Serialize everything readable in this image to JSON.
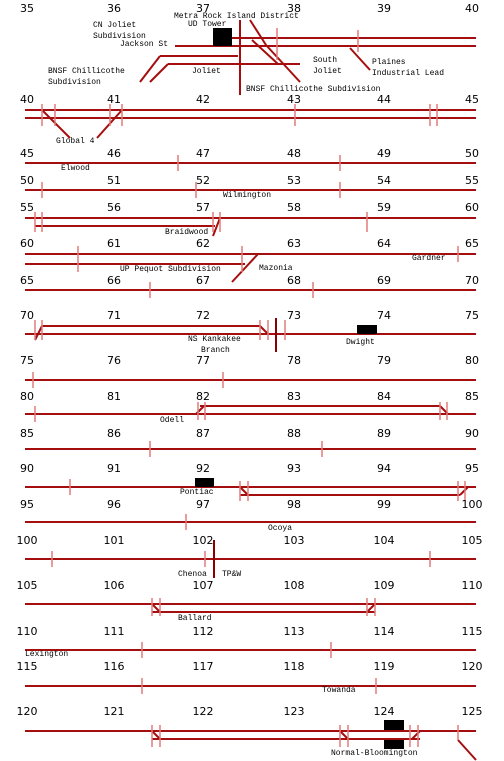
{
  "rows": [
    {
      "miles": [
        35,
        36,
        37,
        38,
        39,
        40
      ],
      "labels": [
        "Metra Rock Island District",
        "UD Tower",
        "CN Joliet",
        "Subdivision",
        "Jackson St",
        "South",
        "Joliet",
        "Plaines",
        "Industrial Lead",
        "BNSF Chillicothe",
        "Subdivision",
        "Joliet",
        "BNSF Chillicothe Subdivision"
      ]
    },
    {
      "miles": [
        40,
        41,
        42,
        43,
        44,
        45
      ],
      "labels": [
        "Global 4"
      ]
    },
    {
      "miles": [
        45,
        46,
        47,
        48,
        49,
        50
      ],
      "labels": [
        "Elwood"
      ]
    },
    {
      "miles": [
        50,
        51,
        52,
        53,
        54,
        55
      ],
      "labels": [
        "Wilmington"
      ]
    },
    {
      "miles": [
        55,
        56,
        57,
        58,
        59,
        60
      ],
      "labels": [
        "Braidwood"
      ]
    },
    {
      "miles": [
        60,
        61,
        62,
        63,
        64,
        65
      ],
      "labels": [
        "Gardner",
        "UP Pequot Subdivision",
        "Mazonia"
      ]
    },
    {
      "miles": [
        65,
        66,
        67,
        68,
        69,
        70
      ],
      "labels": []
    },
    {
      "miles": [
        70,
        71,
        72,
        73,
        74,
        75
      ],
      "labels": [
        "NS Kankakee",
        "Branch",
        "Dwight"
      ]
    },
    {
      "miles": [
        75,
        76,
        77,
        78,
        79,
        80
      ],
      "labels": []
    },
    {
      "miles": [
        80,
        81,
        82,
        83,
        84,
        85
      ],
      "labels": [
        "Odell"
      ]
    },
    {
      "miles": [
        85,
        86,
        87,
        88,
        89,
        90
      ],
      "labels": []
    },
    {
      "miles": [
        90,
        91,
        92,
        93,
        94,
        95
      ],
      "labels": [
        "Pontiac"
      ]
    },
    {
      "miles": [
        95,
        96,
        97,
        98,
        99,
        100
      ],
      "labels": [
        "Ocoya"
      ]
    },
    {
      "miles": [
        100,
        101,
        102,
        103,
        104,
        105
      ],
      "labels": [
        "Chenoa",
        "TP&W"
      ]
    },
    {
      "miles": [
        105,
        106,
        107,
        108,
        109,
        110
      ],
      "labels": [
        "Ballard"
      ]
    },
    {
      "miles": [
        110,
        111,
        112,
        113,
        114,
        115
      ],
      "labels": [
        "Lexington"
      ]
    },
    {
      "miles": [
        115,
        116,
        117,
        118,
        119,
        120
      ],
      "labels": [
        "Towanda"
      ]
    },
    {
      "miles": [
        120,
        121,
        122,
        123,
        124,
        125
      ],
      "labels": [
        "Normal-Bloomington"
      ]
    }
  ]
}
